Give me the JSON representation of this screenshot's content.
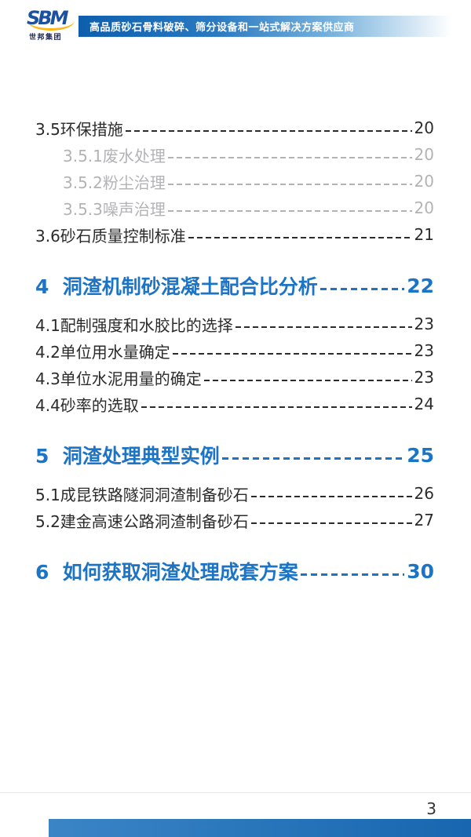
{
  "header": {
    "logo": {
      "brand": "SBM",
      "company": "世邦集团"
    },
    "banner": {
      "text": "高品质砂石骨料破碎、筛分设备和一站式解决方案供应商"
    }
  },
  "toc": {
    "items": [
      {
        "label": "3.5环保措施",
        "page": "20",
        "type": "entry"
      },
      {
        "label": "3.5.1废水处理",
        "page": "20",
        "type": "sub"
      },
      {
        "label": "3.5.2粉尘治理",
        "page": "20",
        "type": "sub"
      },
      {
        "label": "3.5.3噪声治理",
        "page": "20",
        "type": "sub"
      },
      {
        "label": "3.6砂石质量控制标准",
        "page": "21",
        "type": "entry"
      },
      {
        "label": "4  洞渣机制砂混凝土配合比分析",
        "page": "22",
        "type": "section"
      },
      {
        "label": "4.1配制强度和水胶比的选择",
        "page": "23",
        "type": "entry"
      },
      {
        "label": "4.2单位用水量确定",
        "page": "23",
        "type": "entry"
      },
      {
        "label": "4.3单位水泥用量的确定",
        "page": "23",
        "type": "entry"
      },
      {
        "label": "4.4砂率的选取",
        "page": "24",
        "type": "entry"
      },
      {
        "label": "5  洞渣处理典型实例",
        "page": "25",
        "type": "section"
      },
      {
        "label": "5.1成昆铁路隧洞洞渣制备砂石",
        "page": "26",
        "type": "entry"
      },
      {
        "label": "5.2建金高速公路洞渣制备砂石",
        "page": "27",
        "type": "entry"
      },
      {
        "label": "6  如何获取洞渣处理成套方案",
        "page": "30",
        "type": "section"
      }
    ]
  },
  "footer": {
    "page_number": "3"
  },
  "colors": {
    "banner_blue": "#0d5fad",
    "heading_blue": "#1b74c5",
    "sub_gray": "#b3b3b6",
    "text_dark": "#2b2b2b",
    "logo_blue": "#1c51a1",
    "logo_yellow": "#fdb813",
    "footer_bar_blue": "#1766af"
  }
}
